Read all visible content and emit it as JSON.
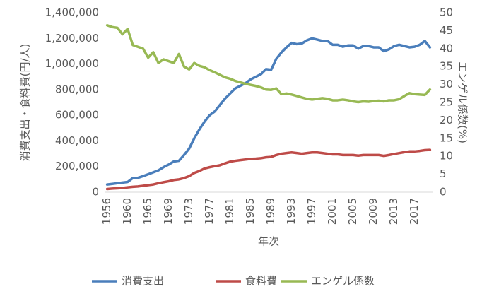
{
  "chart_data": {
    "type": "line",
    "x_label": "年次",
    "y_label": "消費支出・食料費(円/人)",
    "y2_label": "エンゲル係数(%)",
    "categories": [
      "1956",
      null,
      null,
      null,
      "1960",
      null,
      null,
      null,
      "1965",
      null,
      null,
      null,
      "1969",
      null,
      null,
      null,
      "1973",
      null,
      null,
      null,
      "1977",
      null,
      null,
      null,
      "1981",
      null,
      null,
      null,
      "1985",
      null,
      null,
      null,
      "1989",
      null,
      null,
      null,
      "1993",
      null,
      null,
      null,
      "1997",
      null,
      null,
      null,
      "2001",
      null,
      null,
      null,
      "2005",
      null,
      null,
      null,
      "2009",
      null,
      null,
      null,
      "2013",
      null,
      null,
      null,
      "2017",
      null,
      null,
      null
    ],
    "ylim": [
      0,
      1400000
    ],
    "yticks": [
      {
        "value": 0,
        "label": "0"
      },
      {
        "value": 200000,
        "label": "200,000"
      },
      {
        "value": 400000,
        "label": "400,000"
      },
      {
        "value": 600000,
        "label": "600,000"
      },
      {
        "value": 800000,
        "label": "800,000"
      },
      {
        "value": 1000000,
        "label": "1,000,000"
      },
      {
        "value": 1200000,
        "label": "1,200,000"
      },
      {
        "value": 1400000,
        "label": "1,400,000"
      }
    ],
    "y2lim": [
      0,
      50
    ],
    "y2ticks": [
      0,
      5,
      10,
      15,
      20,
      25,
      30,
      35,
      40,
      45,
      50
    ],
    "legend": "bottom",
    "series": [
      {
        "name": "消費支出",
        "color": "#4a7ebb",
        "values": [
          60000,
          65000,
          70000,
          75000,
          80000,
          110000,
          112000,
          125000,
          140000,
          155000,
          170000,
          195000,
          215000,
          240000,
          245000,
          290000,
          340000,
          420000,
          490000,
          550000,
          600000,
          630000,
          680000,
          730000,
          770000,
          810000,
          830000,
          850000,
          880000,
          900000,
          920000,
          960000,
          955000,
          1040000,
          1090000,
          1130000,
          1165000,
          1155000,
          1160000,
          1185000,
          1200000,
          1190000,
          1180000,
          1180000,
          1150000,
          1150000,
          1135000,
          1145000,
          1145000,
          1120000,
          1140000,
          1140000,
          1130000,
          1130000,
          1100000,
          1115000,
          1140000,
          1150000,
          1140000,
          1130000,
          1135000,
          1150000,
          1180000,
          1130000
        ]
      },
      {
        "name": "食料費",
        "color": "#be4b48",
        "values": [
          25000,
          28000,
          30000,
          33000,
          38000,
          42000,
          45000,
          50000,
          55000,
          60000,
          70000,
          78000,
          85000,
          95000,
          100000,
          110000,
          125000,
          150000,
          165000,
          185000,
          195000,
          203000,
          210000,
          225000,
          238000,
          245000,
          250000,
          255000,
          260000,
          262000,
          265000,
          272000,
          275000,
          290000,
          300000,
          305000,
          310000,
          305000,
          300000,
          305000,
          310000,
          310000,
          305000,
          300000,
          295000,
          295000,
          290000,
          290000,
          290000,
          285000,
          290000,
          290000,
          290000,
          290000,
          283000,
          290000,
          298000,
          305000,
          312000,
          318000,
          318000,
          322000,
          328000,
          330000
        ]
      },
      {
        "name": "エンゲル係数",
        "color": "#98b954",
        "axis": "y2",
        "values": [
          46.5,
          46,
          45.8,
          44,
          45.5,
          41,
          40.5,
          40,
          37.5,
          39,
          36,
          37,
          36.5,
          36,
          38.5,
          35,
          34.2,
          36,
          35.2,
          34.8,
          34,
          33.4,
          32.7,
          32,
          31.6,
          31,
          30.6,
          30.2,
          29.9,
          29.6,
          29.2,
          28.6,
          28.5,
          28.9,
          27.3,
          27.5,
          27.2,
          26.8,
          26.4,
          26,
          25.8,
          26,
          26.2,
          26,
          25.6,
          25.6,
          25.8,
          25.6,
          25.3,
          25.1,
          25.3,
          25.2,
          25.4,
          25.5,
          25.3,
          25.6,
          25.6,
          25.9,
          26.8,
          27.6,
          27.3,
          27.2,
          27.1,
          28.6
        ]
      }
    ]
  }
}
